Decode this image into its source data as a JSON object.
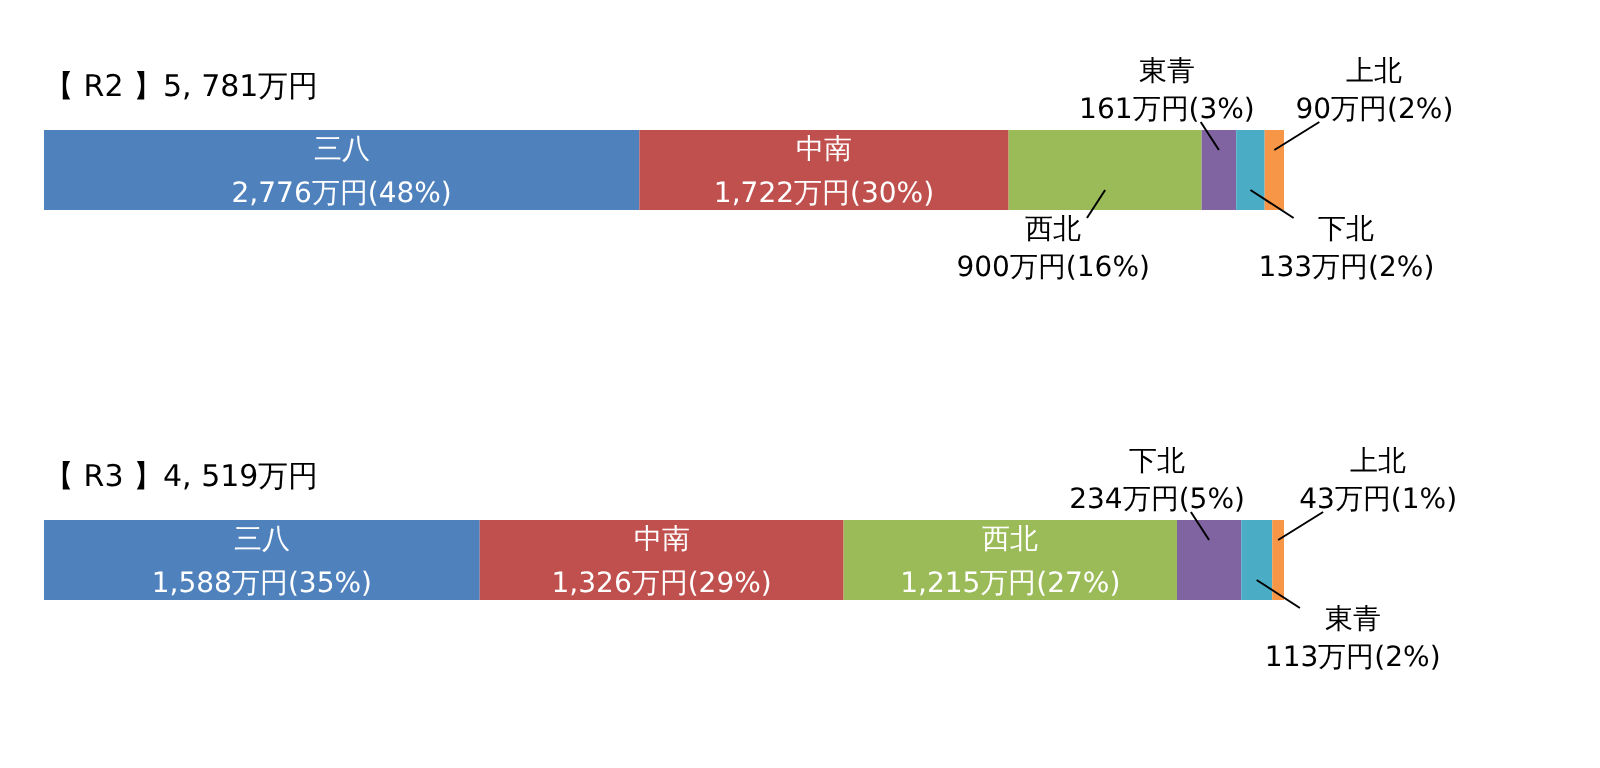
{
  "chart_data": [
    {
      "type": "bar",
      "title": "【 R2 】5, 781万円",
      "orientation": "horizontal",
      "stacked": true,
      "categories": [
        null
      ],
      "series": [
        {
          "name": "三八",
          "color": "#4f81bd",
          "values": [
            2776
          ],
          "value_labels": [
            "2,776万円(48%)"
          ]
        },
        {
          "name": "中南",
          "color": "#c0504d",
          "values": [
            1722
          ],
          "value_labels": [
            "1,722万円(30%)"
          ]
        },
        {
          "name": "西北",
          "color": "#9bbb59",
          "values": [
            900
          ],
          "value_labels": [
            "900万円(16%)"
          ]
        },
        {
          "name": "東青",
          "color": "#8064a2",
          "values": [
            161
          ],
          "value_labels": [
            "161万円(3%)"
          ]
        },
        {
          "name": "下北",
          "color": "#4bacc6",
          "values": [
            133
          ],
          "value_labels": [
            "133万円(2%)"
          ]
        },
        {
          "name": "上北",
          "color": "#f79646",
          "values": [
            90
          ],
          "value_labels": [
            "90万円(2%)"
          ]
        }
      ]
    },
    {
      "type": "bar",
      "title": "【 R3 】4, 519万円",
      "orientation": "horizontal",
      "stacked": true,
      "categories": [
        null
      ],
      "series": [
        {
          "name": "三八",
          "color": "#4f81bd",
          "values": [
            1588
          ],
          "value_labels": [
            "1,588万円(35%)"
          ]
        },
        {
          "name": "中南",
          "color": "#c0504d",
          "values": [
            1326
          ],
          "value_labels": [
            "1,326万円(29%)"
          ]
        },
        {
          "name": "西北",
          "color": "#9bbb59",
          "values": [
            1215
          ],
          "value_labels": [
            "1,215万円(27%)"
          ]
        },
        {
          "name": "下北",
          "color": "#8064a2",
          "values": [
            234
          ],
          "value_labels": [
            "234万円(5%)"
          ]
        },
        {
          "name": "東青",
          "color": "#4bacc6",
          "values": [
            113
          ],
          "value_labels": [
            "113万円(2%)"
          ]
        },
        {
          "name": "上北",
          "color": "#f79646",
          "values": [
            43
          ],
          "value_labels": [
            "43万円(1%)"
          ]
        }
      ]
    }
  ]
}
